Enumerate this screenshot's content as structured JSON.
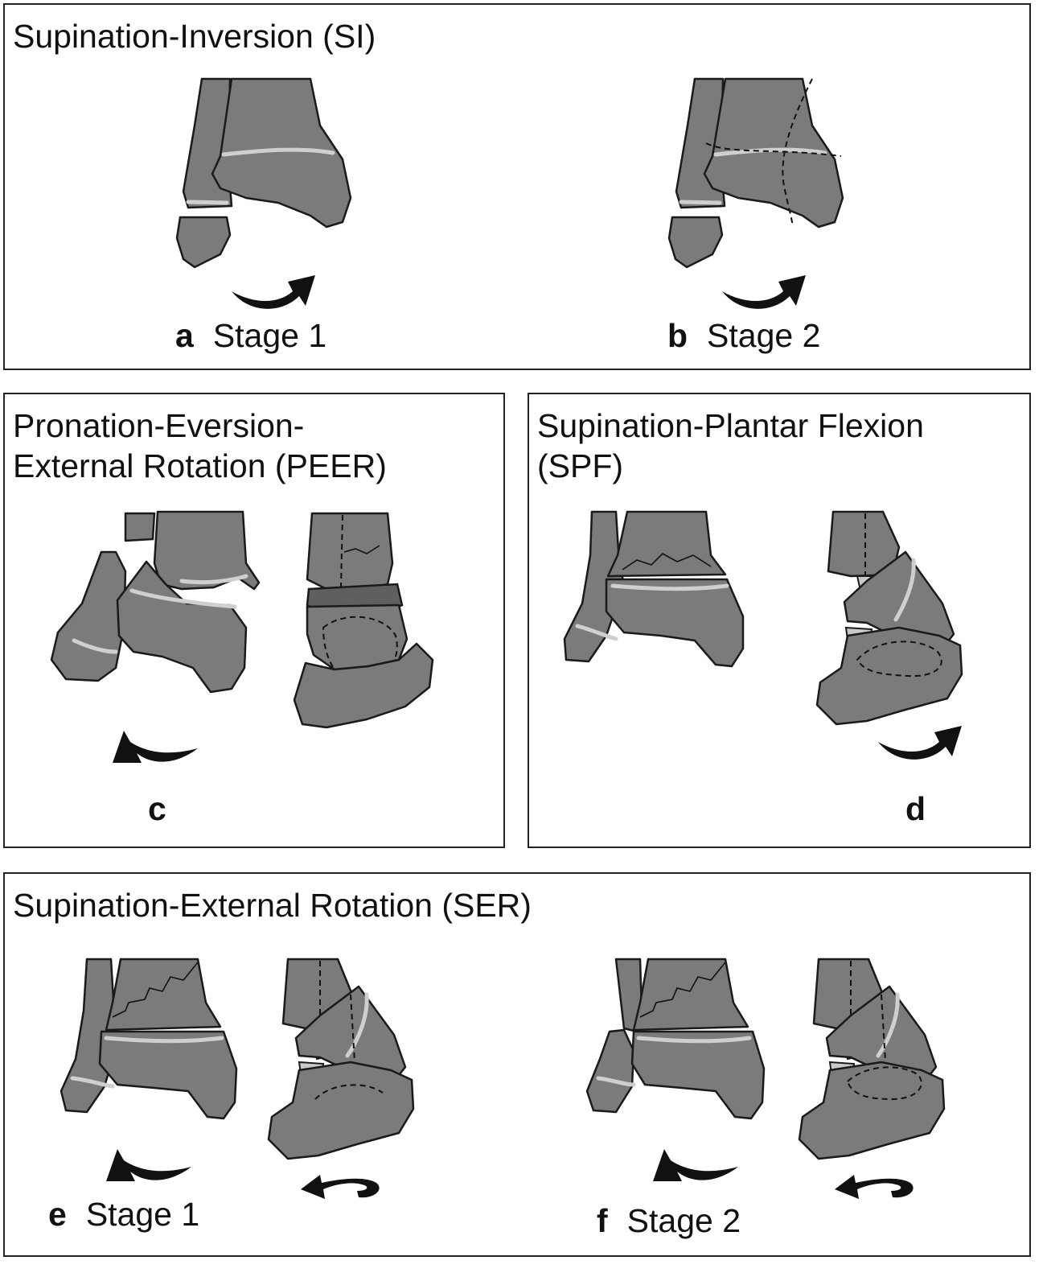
{
  "panels": {
    "si": {
      "title": "Supination-Inversion (SI)",
      "a": {
        "letter": "a",
        "label": "Stage 1"
      },
      "b": {
        "letter": "b",
        "label": "Stage 2"
      }
    },
    "peer": {
      "title": "Pronation-Eversion-\nExternal Rotation (PEER)",
      "c": {
        "letter": "c",
        "label": ""
      }
    },
    "spf": {
      "title": "Supination-Plantar Flexion\n(SPF)",
      "d": {
        "letter": "d",
        "label": ""
      }
    },
    "ser": {
      "title": "Supination-External Rotation (SER)",
      "e": {
        "letter": "e",
        "label": "Stage 1"
      },
      "f": {
        "letter": "f",
        "label": "Stage 2"
      }
    }
  },
  "colors": {
    "bone": "#7b7b7b",
    "growth_plate": "#cfcfcf",
    "outline": "#1a1a1a"
  }
}
